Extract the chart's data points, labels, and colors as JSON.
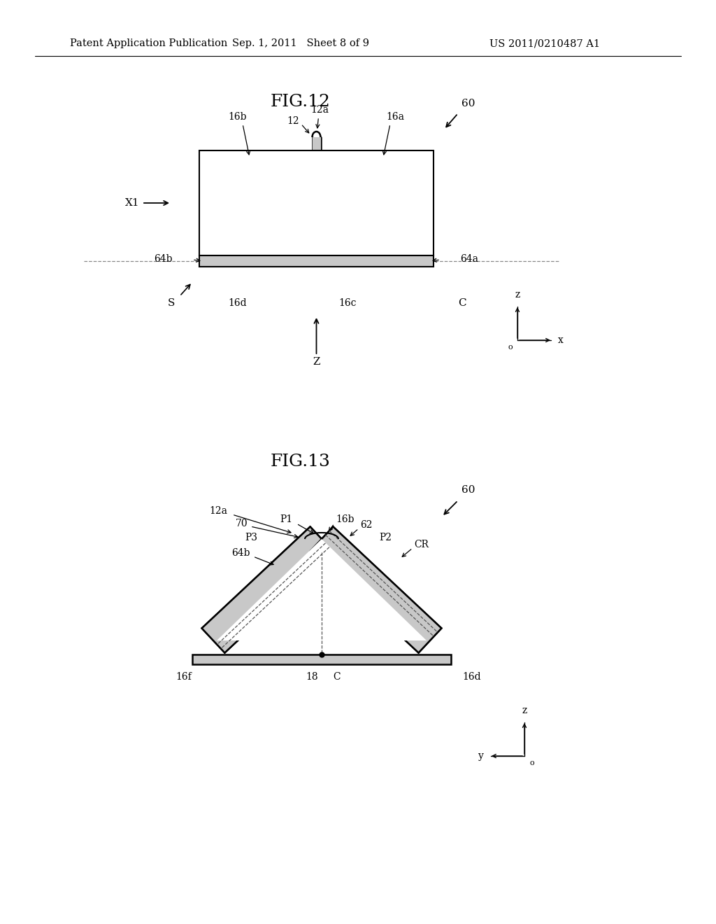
{
  "bg_color": "#ffffff",
  "header_left": "Patent Application Publication",
  "header_mid": "Sep. 1, 2011   Sheet 8 of 9",
  "header_right": "US 2011/0210487 A1",
  "fig12_title": "FIG.12",
  "fig13_title": "FIG.13",
  "line_color": "#000000",
  "gray_fill": "#c8c8c8",
  "light_fill": "#ffffff",
  "dashed_color": "#555555"
}
